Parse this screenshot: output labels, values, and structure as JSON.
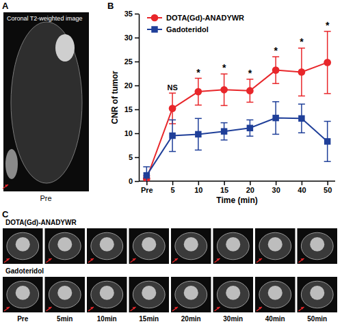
{
  "chart_data": {
    "type": "line",
    "x_label": "Time (min)",
    "y_label": "CNR of tumor",
    "categories": [
      "Pre",
      "5",
      "10",
      "15",
      "20",
      "30",
      "40",
      "50"
    ],
    "series": [
      {
        "name": "DOTA(Gd)-ANADYWR",
        "color": "#e8262a",
        "marker": "circle",
        "line_style": "solid",
        "values": [
          0.5,
          15.2,
          18.7,
          19.1,
          18.9,
          23.2,
          22.8,
          24.8
        ],
        "errors": [
          0.6,
          3.2,
          2.8,
          3.3,
          2.4,
          2.8,
          5.0,
          6.5
        ]
      },
      {
        "name": "Gadoteridol",
        "color": "#1f3f99",
        "marker": "square",
        "line_style": "solid",
        "values": [
          1.2,
          9.5,
          9.8,
          10.4,
          11.1,
          13.2,
          13.1,
          8.3
        ],
        "errors": [
          1.8,
          3.3,
          3.3,
          1.8,
          1.7,
          3.4,
          3.0,
          4.2
        ]
      }
    ],
    "annotations": [
      {
        "text": "NS",
        "category": "5"
      },
      {
        "text": "*",
        "category": "10"
      },
      {
        "text": "*",
        "category": "15"
      },
      {
        "text": "*",
        "category": "20"
      },
      {
        "text": "*",
        "category": "30"
      },
      {
        "text": "*",
        "category": "40"
      },
      {
        "text": "*",
        "category": "50"
      }
    ],
    "ylim": [
      0,
      35
    ],
    "yticks": [
      0,
      5,
      10,
      15,
      20,
      25,
      30,
      35
    ],
    "grid": false,
    "legend": "top-left"
  },
  "figure": {
    "a": {
      "label": "A",
      "title": "Coronal T2-weighted image",
      "caption": "Pre"
    },
    "b_label": "B",
    "c": {
      "label": "C",
      "rows": [
        "DOTA(Gd)-ANADYWR",
        "Gadoteridol"
      ],
      "times": [
        "Pre",
        "5min",
        "10min",
        "15min",
        "20min",
        "30min",
        "40min",
        "50min"
      ]
    }
  }
}
